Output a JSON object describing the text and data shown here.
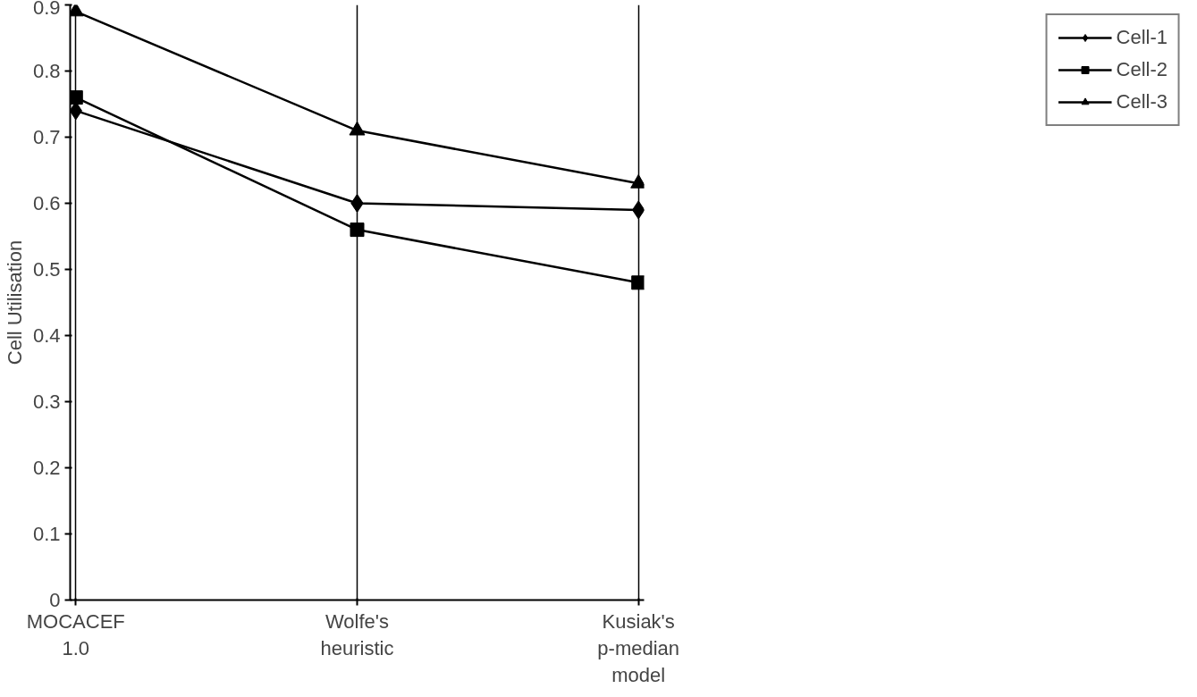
{
  "chart_data": {
    "type": "line",
    "ylabel": "Cell Utilisation",
    "categories": [
      "MOCACEF 1.0",
      "Wolfe's heuristic",
      "Kusiak's p-median model"
    ],
    "series": [
      {
        "name": "Cell-1",
        "color": "#000000",
        "marker": "diamond",
        "values": [
          0.74,
          0.6,
          0.59
        ]
      },
      {
        "name": "Cell-2",
        "color": "#000000",
        "marker": "square",
        "values": [
          0.76,
          0.56,
          0.48
        ]
      },
      {
        "name": "Cell-3",
        "color": "#000000",
        "marker": "triangle",
        "values": [
          0.89,
          0.71,
          0.63
        ]
      }
    ],
    "ylim": [
      0,
      0.9
    ],
    "yticks": [
      0,
      0.1,
      0.2,
      0.3,
      0.4,
      0.5,
      0.6,
      0.7,
      0.8,
      0.9
    ],
    "grid": "x",
    "legend": "right",
    "line_style": "solid"
  }
}
